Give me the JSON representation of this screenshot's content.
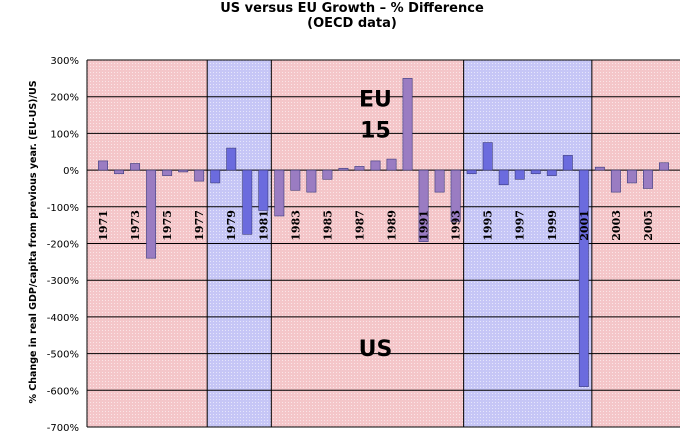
{
  "chart_data": {
    "type": "bar",
    "title": "US versus EU Growth – % Difference",
    "subtitle": "(OECD data)",
    "ylabel": "% Change in real GDP/capita from previous year. (EU-US)/US",
    "xlabel": "",
    "ylim": [
      -700,
      300
    ],
    "yticks": [
      300,
      200,
      100,
      0,
      -100,
      -200,
      -300,
      -400,
      -500,
      -600,
      -700
    ],
    "ytick_labels": [
      "300%",
      "200%",
      "100%",
      "0%",
      "-100%",
      "-200%",
      "-300%",
      "-400%",
      "-500%",
      "-600%",
      "-700%"
    ],
    "grid": true,
    "categories": [
      1971,
      1972,
      1973,
      1974,
      1975,
      1976,
      1977,
      1978,
      1979,
      1980,
      1981,
      1982,
      1983,
      1984,
      1985,
      1986,
      1987,
      1988,
      1989,
      1990,
      1991,
      1992,
      1993,
      1994,
      1995,
      1996,
      1997,
      1998,
      1999,
      2000,
      2001,
      2002,
      2003,
      2004,
      2005,
      2006
    ],
    "xtick_labels": [
      "1971",
      "1973",
      "1975",
      "1977",
      "1979",
      "1981",
      "1983",
      "1985",
      "1987",
      "1989",
      "1991",
      "1993",
      "1995",
      "1997",
      "1999",
      "2001",
      "2003",
      "2005"
    ],
    "values": [
      25,
      -10,
      18,
      -240,
      -15,
      -5,
      -30,
      -35,
      60,
      -175,
      -110,
      -125,
      -55,
      -60,
      -25,
      5,
      10,
      25,
      30,
      250,
      -195,
      -60,
      -140,
      -10,
      75,
      -40,
      -25,
      -10,
      -15,
      40,
      -590,
      8,
      -60,
      -35,
      -50,
      20
    ],
    "bar_colors": {
      "pink_region": "#9a7cc2",
      "blue_region": "#6b6bde"
    },
    "regions": [
      {
        "start": 1971,
        "end": 1978,
        "color": "#f4c6c9",
        "group": "EU"
      },
      {
        "start": 1978,
        "end": 1982,
        "color": "#c6c6f6",
        "group": "US"
      },
      {
        "start": 1982,
        "end": 1994,
        "color": "#f4c6c9",
        "group": "EU"
      },
      {
        "start": 1994,
        "end": 2002,
        "color": "#c6c6f6",
        "group": "US"
      },
      {
        "start": 2002,
        "end": 2007,
        "color": "#f4c6c9",
        "group": "EU"
      }
    ],
    "annotations": [
      {
        "text": "EU",
        "x": 1988.5,
        "y": 195
      },
      {
        "text": "15",
        "x": 1988.5,
        "y": 110
      },
      {
        "text": "US",
        "x": 1988.5,
        "y": -485
      }
    ]
  }
}
